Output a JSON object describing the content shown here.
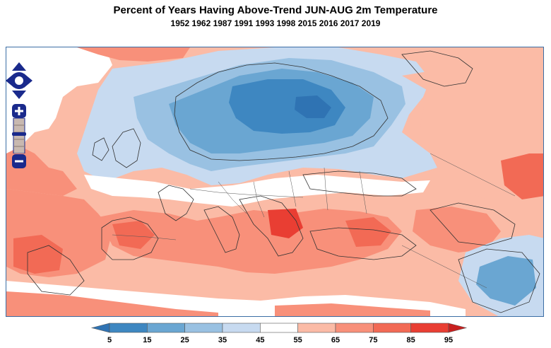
{
  "title": "Percent of Years Having Above-Trend JUN-AUG 2m Temperature",
  "subtitle": "1952 1962 1987 1991 1993 1998 2015 2016 2017 2019",
  "controls": {
    "pan_icon": "pan-arrows-icon",
    "zoom_in_icon": "plus-icon",
    "zoom_out_icon": "minus-icon"
  },
  "legend": {
    "ticks": [
      "5",
      "15",
      "25",
      "35",
      "45",
      "55",
      "65",
      "75",
      "85",
      "95"
    ],
    "colors": [
      "#3e87c1",
      "#6aa6d2",
      "#99c1e2",
      "#c7daf0",
      "#ffffff",
      "#fbbba6",
      "#f8907a",
      "#f26a55",
      "#e93e33"
    ],
    "under_color": "#2f73b3",
    "over_color": "#c8201f"
  }
}
